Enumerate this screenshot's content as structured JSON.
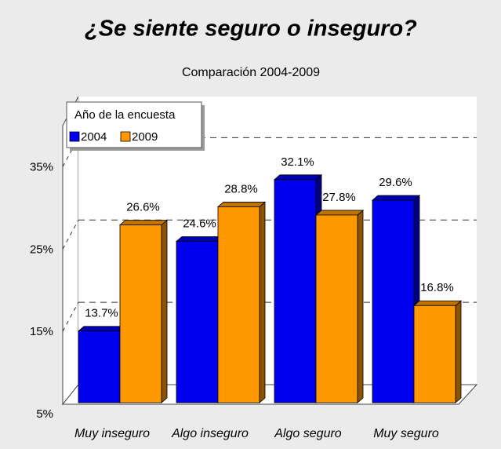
{
  "chart_data": {
    "type": "bar3d",
    "title": "¿Se siente seguro o inseguro?",
    "subtitle": "Comparación 2004-2009",
    "categories": [
      "Muy inseguro",
      "Algo inseguro",
      "Algo seguro",
      "Muy seguro"
    ],
    "series": [
      {
        "name": "2004",
        "color": "#0000ee",
        "values": [
          13.7,
          24.6,
          32.1,
          29.6
        ],
        "value_labels": [
          "13.7%",
          "24.6%",
          "32.1%",
          "29.6%"
        ]
      },
      {
        "name": "2009",
        "color": "#ff9900",
        "values": [
          26.6,
          28.8,
          27.8,
          16.8
        ],
        "value_labels": [
          "26.6%",
          "28.8%",
          "27.8%",
          "16.8%"
        ]
      }
    ],
    "legend_title": "Año de la encuesta",
    "legend": "top-left",
    "ylim": [
      5,
      40
    ],
    "yticks": [
      {
        "value": 5,
        "label": "5%"
      },
      {
        "value": 15,
        "label": "15%"
      },
      {
        "value": 25,
        "label": "25%"
      },
      {
        "value": 35,
        "label": "35%"
      }
    ],
    "grid": true
  }
}
